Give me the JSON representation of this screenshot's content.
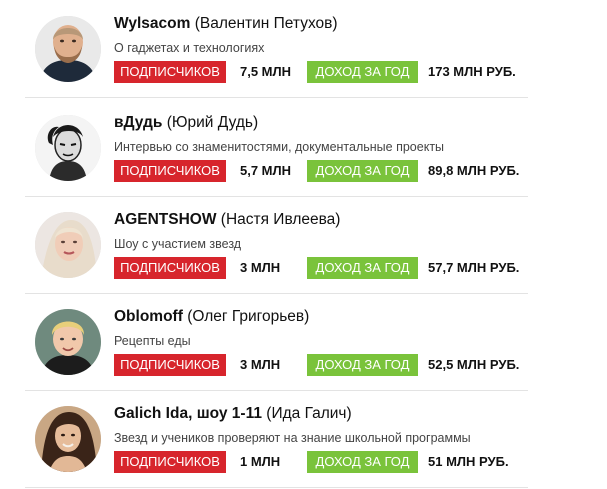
{
  "entries": [
    {
      "channel": "Wylsacom",
      "person": "(Валентин Петухов)",
      "description": "О гаджетах и технологиях",
      "subscribers_label": "ПОДПИСЧИКОВ",
      "subscribers": "7,5 МЛН",
      "income_label": "ДОХОД ЗА ГОД",
      "income": "173 МЛН РУБ.",
      "avatar_icon": "bearded-man-avatar"
    },
    {
      "channel": "вДудь",
      "person": "(Юрий Дудь)",
      "description": "Интервью со знаменитостями, документальные проекты",
      "subscribers_label": "ПОДПИСЧИКОВ",
      "subscribers": "5,7 МЛН",
      "income_label": "ДОХОД ЗА ГОД",
      "income": "89,8 МЛН РУБ.",
      "avatar_icon": "sketched-man-avatar"
    },
    {
      "channel": "AGENTSHOW",
      "person": "(Настя Ивлеева)",
      "description": "Шоу с участием звезд",
      "subscribers_label": "ПОДПИСЧИКОВ",
      "subscribers": "3 МЛН",
      "income_label": "ДОХОД ЗА ГОД",
      "income": "57,7 МЛН РУБ.",
      "avatar_icon": "blonde-woman-avatar"
    },
    {
      "channel": "Oblomoff",
      "person": "(Олег Григорьев)",
      "description": "Рецепты еды",
      "subscribers_label": "ПОДПИСЧИКОВ",
      "subscribers": "3 МЛН",
      "income_label": "ДОХОД ЗА ГОД",
      "income": "52,5 МЛН РУБ.",
      "avatar_icon": "blond-man-avatar"
    },
    {
      "channel": "Galich Ida, шоу 1-11",
      "person": "(Ида Галич)",
      "description": "Звезд и учеников проверяют на знание школьной программы",
      "subscribers_label": "ПОДПИСЧИКОВ",
      "subscribers": "1 МЛН",
      "income_label": "ДОХОД ЗА ГОД",
      "income": "51 МЛН РУБ.",
      "avatar_icon": "dark-haired-woman-avatar"
    }
  ],
  "colors": {
    "subscribers_badge": "#d7252c",
    "income_badge": "#7ac33b",
    "divider": "#e3e3e3"
  }
}
